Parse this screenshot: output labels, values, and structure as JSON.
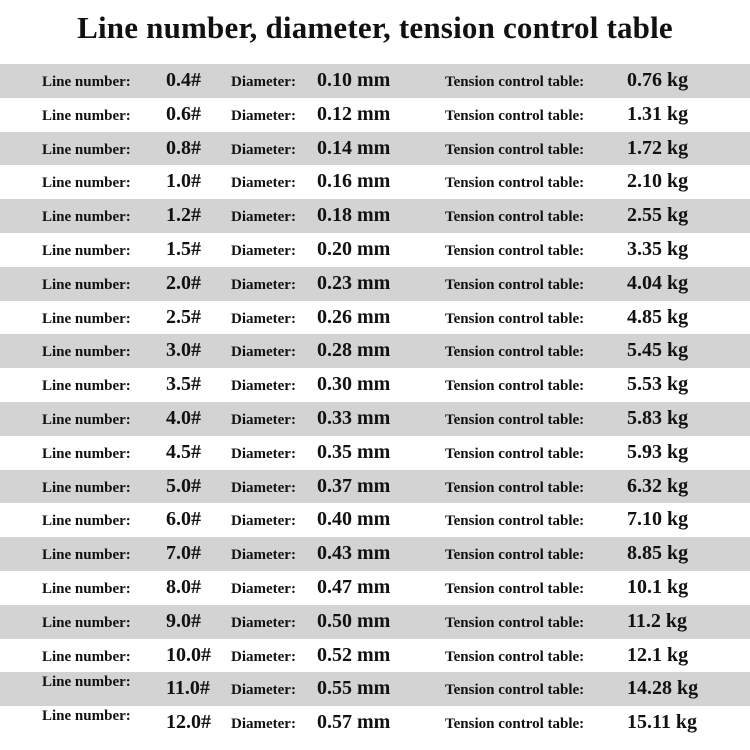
{
  "title": "Line number, diameter, tension control table",
  "labels": {
    "line_number": "Line number:",
    "diameter": "Diameter:",
    "tension": "Tension control table:"
  },
  "rows": [
    {
      "line": "0.4#",
      "diameter": "0.10 mm",
      "tension": "0.76 kg"
    },
    {
      "line": "0.6#",
      "diameter": "0.12 mm",
      "tension": "1.31 kg"
    },
    {
      "line": "0.8#",
      "diameter": "0.14 mm",
      "tension": "1.72 kg"
    },
    {
      "line": "1.0#",
      "diameter": "0.16 mm",
      "tension": "2.10 kg"
    },
    {
      "line": "1.2#",
      "diameter": "0.18 mm",
      "tension": "2.55 kg"
    },
    {
      "line": "1.5#",
      "diameter": "0.20 mm",
      "tension": "3.35 kg"
    },
    {
      "line": "2.0#",
      "diameter": "0.23 mm",
      "tension": "4.04 kg"
    },
    {
      "line": "2.5#",
      "diameter": "0.26 mm",
      "tension": "4.85 kg"
    },
    {
      "line": "3.0#",
      "diameter": "0.28 mm",
      "tension": "5.45 kg"
    },
    {
      "line": "3.5#",
      "diameter": "0.30 mm",
      "tension": "5.53 kg"
    },
    {
      "line": "4.0#",
      "diameter": "0.33 mm",
      "tension": "5.83 kg"
    },
    {
      "line": "4.5#",
      "diameter": "0.35 mm",
      "tension": "5.93 kg"
    },
    {
      "line": "5.0#",
      "diameter": "0.37 mm",
      "tension": "6.32 kg"
    },
    {
      "line": "6.0#",
      "diameter": "0.40 mm",
      "tension": "7.10 kg"
    },
    {
      "line": "7.0#",
      "diameter": "0.43 mm",
      "tension": "8.85 kg"
    },
    {
      "line": "8.0#",
      "diameter": "0.47 mm",
      "tension": "10.1 kg"
    },
    {
      "line": "9.0#",
      "diameter": "0.50 mm",
      "tension": "11.2 kg"
    },
    {
      "line": "10.0#",
      "diameter": "0.52 mm",
      "tension": "12.1 kg"
    },
    {
      "line": "11.0#",
      "diameter": "0.55 mm",
      "tension": "14.28 kg"
    },
    {
      "line": "12.0#",
      "diameter": "0.57 mm",
      "tension": "15.11 kg"
    }
  ],
  "colors": {
    "stripe": "#d3d3d3",
    "background": "#ffffff",
    "text": "#111111"
  }
}
